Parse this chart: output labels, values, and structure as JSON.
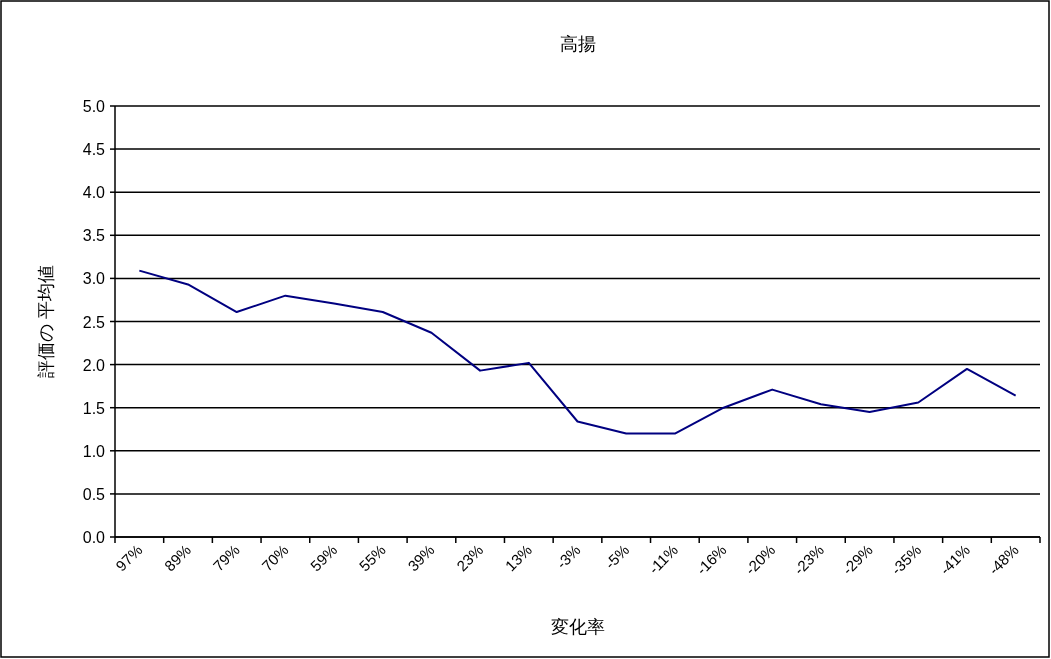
{
  "chart_data": {
    "type": "line",
    "title": "高揚",
    "xlabel": "変化率",
    "ylabel": "評価の 平均値",
    "categories": [
      "97%",
      "89%",
      "79%",
      "70%",
      "59%",
      "55%",
      "39%",
      "23%",
      "13%",
      "-3%",
      "-5%",
      "-11%",
      "-16%",
      "-20%",
      "-23%",
      "-29%",
      "-35%",
      "-41%",
      "-48%"
    ],
    "series": [
      {
        "color": "#000080",
        "values": [
          3.09,
          2.93,
          2.61,
          2.8,
          2.71,
          2.61,
          2.37,
          1.93,
          2.02,
          1.34,
          1.2,
          1.2,
          1.5,
          1.71,
          1.54,
          1.45,
          1.56,
          1.95,
          1.64
        ]
      }
    ],
    "ylim": [
      0,
      5
    ],
    "yticks": [
      {
        "value": 0,
        "label": "0.0"
      },
      {
        "value": 0.5,
        "label": "0.5"
      },
      {
        "value": 1,
        "label": "1.0"
      },
      {
        "value": 1.5,
        "label": "1.5"
      },
      {
        "value": 2,
        "label": "2.0"
      },
      {
        "value": 2.5,
        "label": "2.5"
      },
      {
        "value": 3,
        "label": "3.0"
      },
      {
        "value": 3.5,
        "label": "3.5"
      },
      {
        "value": 4,
        "label": "4.0"
      },
      {
        "value": 4.5,
        "label": "4.5"
      },
      {
        "value": 5,
        "label": "5.0"
      }
    ],
    "grid": "y"
  }
}
